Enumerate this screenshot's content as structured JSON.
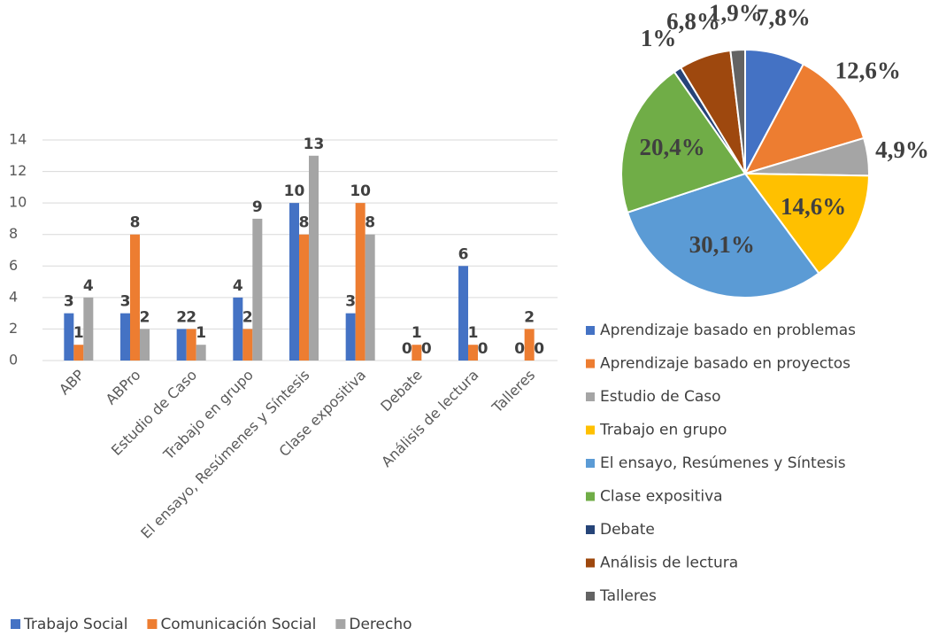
{
  "chart_data": [
    {
      "type": "bar",
      "categories": [
        "ABP",
        "ABPro",
        "Estudio de Caso",
        "Trabajo en grupo",
        "El ensayo, Resúmenes y Síntesis",
        "Clase expositiva",
        "Debate",
        "Análisis de lectura",
        "Talleres"
      ],
      "series": [
        {
          "name": "Trabajo Social",
          "color": "#4472c4",
          "values": [
            3,
            3,
            2,
            4,
            10,
            3,
            0,
            6,
            0
          ]
        },
        {
          "name": "Comunicación Social",
          "color": "#ed7d31",
          "values": [
            1,
            8,
            2,
            2,
            8,
            10,
            1,
            1,
            2
          ]
        },
        {
          "name": "Derecho",
          "color": "#a5a5a5",
          "values": [
            4,
            2,
            1,
            9,
            13,
            8,
            0,
            0,
            0
          ]
        }
      ],
      "ylim": [
        0,
        14
      ],
      "yticks": [
        0,
        2,
        4,
        6,
        8,
        10,
        12,
        14
      ],
      "grid": true
    },
    {
      "type": "pie",
      "categories": [
        "Aprendizaje basado en problemas",
        "Aprendizaje basado en proyectos",
        "Estudio de Caso",
        "Trabajo en grupo",
        "El ensayo, Resúmenes y Síntesis",
        "Clase expositiva",
        "Debate",
        "Análisis de lectura",
        "Talleres"
      ],
      "values": [
        7.8,
        12.6,
        4.9,
        14.6,
        30.1,
        20.4,
        1,
        6.8,
        1.9
      ],
      "value_labels": [
        "7,8%",
        "12,6%",
        "4,9%",
        "14,6%",
        "30,1%",
        "20,4%",
        "1%",
        "6,8%",
        "1,9%"
      ],
      "colors": [
        "#4472c4",
        "#ed7d31",
        "#a5a5a5",
        "#ffc000",
        "#5b9bd5",
        "#70ad47",
        "#264478",
        "#9e480e",
        "#636363"
      ]
    }
  ]
}
